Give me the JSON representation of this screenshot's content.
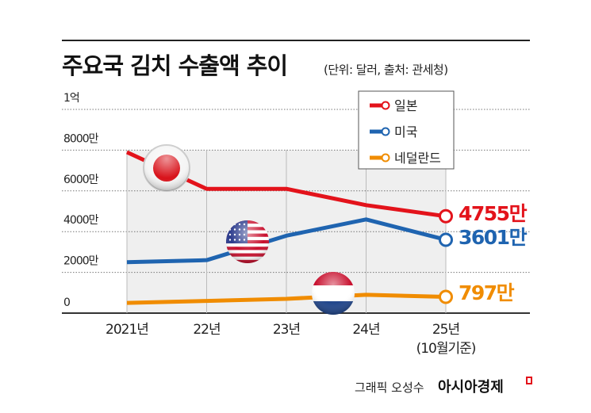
{
  "title": "주요국 김치 수출액 추이",
  "subtitle": "(단위: 달러, 출처: 관세청)",
  "credit": {
    "text": "그래픽 오성수",
    "brand": "아시아경제"
  },
  "chart_data": {
    "type": "line",
    "title": "주요국 김치 수출액 추이",
    "subtitle": "(단위: 달러, 출처: 관세청)",
    "categories": [
      "2021년",
      "22년",
      "23년",
      "24년",
      "25년"
    ],
    "category_sublabels": [
      "",
      "",
      "",
      "",
      "(10월기준)"
    ],
    "y_ticks": [
      {
        "value": 0,
        "label": "0"
      },
      {
        "value": 2000,
        "label": "2000만"
      },
      {
        "value": 4000,
        "label": "4000만"
      },
      {
        "value": 6000,
        "label": "6000만"
      },
      {
        "value": 8000,
        "label": "8000만"
      },
      {
        "value": 10000,
        "label": "1억"
      }
    ],
    "ylim": [
      0,
      10000
    ],
    "y_unit": "만 달러",
    "grid": true,
    "legend_position": "top-right",
    "series": [
      {
        "name": "일본",
        "color": "#e3131b",
        "values": [
          7900,
          6100,
          6100,
          5300,
          4755
        ],
        "end_label": "4755만",
        "flag": "japan"
      },
      {
        "name": "미국",
        "color": "#1f64b0",
        "values": [
          2500,
          2600,
          3800,
          4600,
          3601
        ],
        "end_label": "3601만",
        "flag": "usa"
      },
      {
        "name": "네덜란드",
        "color": "#f08c00",
        "values": [
          500,
          600,
          700,
          900,
          797
        ],
        "end_label": "797만",
        "flag": "netherlands"
      }
    ]
  }
}
